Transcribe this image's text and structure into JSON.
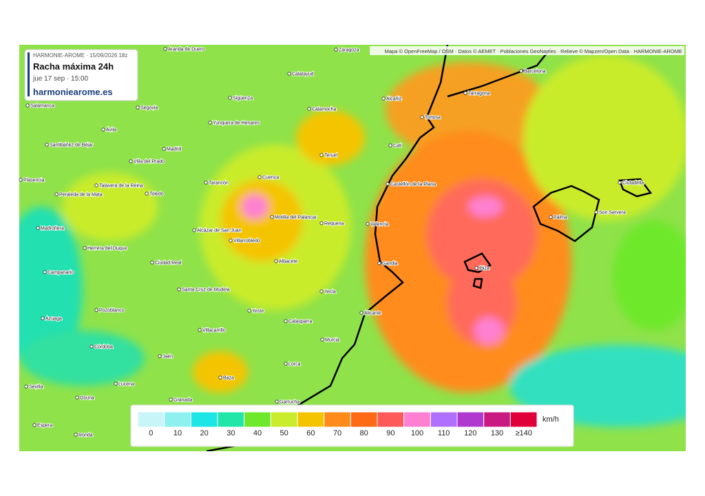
{
  "info": {
    "model_run": "HARMONIE-AROME · 15/09/2026 18z",
    "title": "Racha máxima 24h",
    "valid_time": "jue 17 sep · 15:00",
    "site": "harmoniearome.es"
  },
  "attribution": "Mapa © OpenFreeMap / OSM · Datos © AEMET · Poblaciones GeoNames · Relieve © Mapzen/Open Data · HARMONIE-AROME",
  "cities": [
    "Aranda de Duero",
    "Zaragoza",
    "Calatayud",
    "Barcelona",
    "Alcañiz",
    "Tarragona",
    "Salamanca",
    "Segovia",
    "Sigüenza",
    "Calamocha",
    "Tortosa",
    "Yunquera de Henares",
    "Ávila",
    "Santibáñez de Béjar",
    "Madrid",
    "Teruel",
    "Cati",
    "Villa del Prado",
    "Castellón de la Plana",
    "Ciutadella",
    "Plasencia",
    "Tarancón",
    "Cuenca",
    "Talavera de la Reina",
    "Peraleda de la Mata",
    "Toledo",
    "Son Servera",
    "Palma",
    "Motilla del Palancar",
    "Requena",
    "Valencia",
    "Madroñera",
    "Alcázar de San Juan",
    "Villarrobledo",
    "Herrera del Duque",
    "Gandia",
    "Ibiza",
    "Ciudad Real",
    "Albacete",
    "Campanario",
    "Santa Cruz de Mudela",
    "Yecla",
    "Pozoblanco",
    "Yeste",
    "Alicante",
    "Azuaga",
    "Calasparra",
    "Villacarrillo",
    "Murcia",
    "Córdoba",
    "Jaén",
    "Lorca",
    "Baza",
    "Lucena",
    "Sevilla",
    "Osuna",
    "Granada",
    "Garrucha",
    "Espera",
    "Ronda"
  ],
  "legend": {
    "unit": "km/h",
    "items": [
      {
        "label": "0",
        "color": "#c8f5f8"
      },
      {
        "label": "10",
        "color": "#8ff0f0"
      },
      {
        "label": "20",
        "color": "#1ee6e6"
      },
      {
        "label": "30",
        "color": "#22e6a8"
      },
      {
        "label": "40",
        "color": "#6ee82a"
      },
      {
        "label": "50",
        "color": "#c9ec2c"
      },
      {
        "label": "60",
        "color": "#f5c400"
      },
      {
        "label": "70",
        "color": "#ff8c1a"
      },
      {
        "label": "80",
        "color": "#ff6a14"
      },
      {
        "label": "90",
        "color": "#ff5a5a"
      },
      {
        "label": "100",
        "color": "#ff80d0"
      },
      {
        "label": "110",
        "color": "#b070ff"
      },
      {
        "label": "120",
        "color": "#b03ad0"
      },
      {
        "label": "130",
        "color": "#c81a80"
      },
      {
        "label": "≥140",
        "color": "#e0003a"
      }
    ]
  }
}
